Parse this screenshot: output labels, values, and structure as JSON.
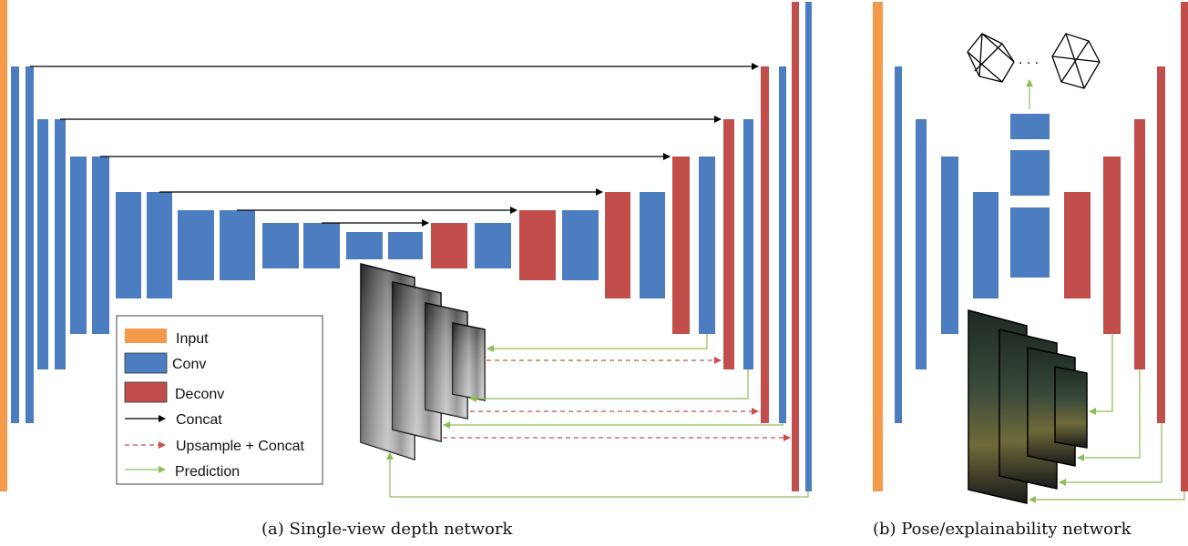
{
  "colors": {
    "input": "#F59A4B",
    "conv": "#4B7DC0",
    "deconv": "#C14E4B",
    "concat": "#000000",
    "upsample": "#C9504E",
    "prediction": "#8DBE58"
  },
  "legend": {
    "input": "Input",
    "conv": "Conv",
    "deconv": "Deconv",
    "concat": "Concat",
    "upsample": "Upsample + Concat",
    "prediction": "Prediction"
  },
  "captions": {
    "depth": "(a) Single-view depth network",
    "pose": "(b) Pose/explainability network"
  },
  "pose_output": {
    "ellipsis": ". . ."
  }
}
